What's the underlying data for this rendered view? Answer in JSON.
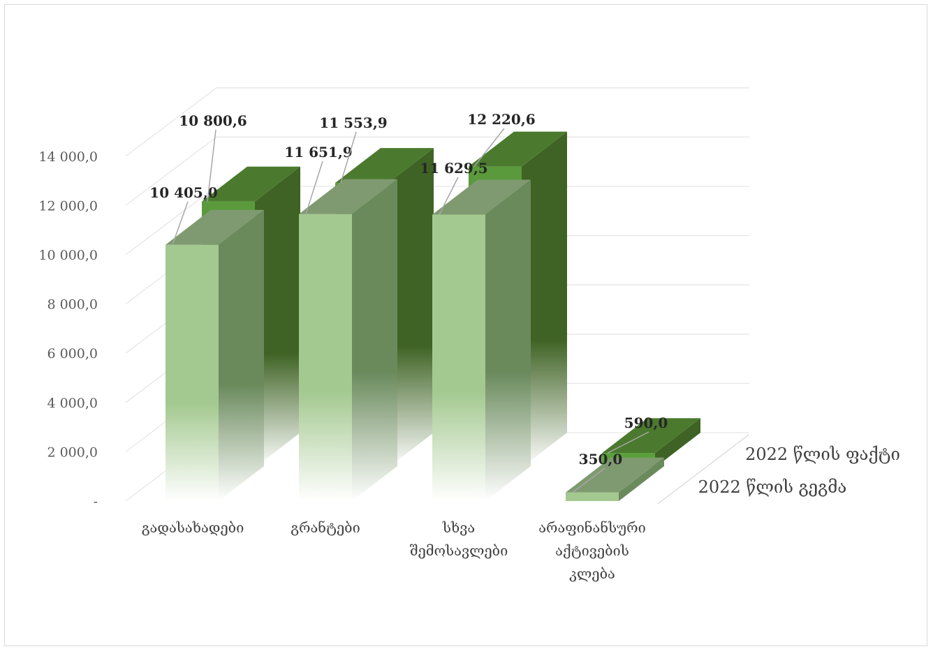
{
  "chart_data": {
    "type": "bar",
    "title": "",
    "xlabel": "",
    "ylabel": "",
    "ylim": [
      0,
      14000
    ],
    "yticks": [
      "-",
      "2 000,0",
      "4 000,0",
      "6 000,0",
      "8 000,0",
      "10 000,0",
      "12 000,0",
      "14 000,0"
    ],
    "categories": [
      [
        "გადასახადები"
      ],
      [
        "გრანტები"
      ],
      [
        "სხვა",
        "შემოსავლები"
      ],
      [
        "არაფინანსური",
        "აქტივების",
        "კლება"
      ]
    ],
    "series": [
      {
        "name": "2022 წლის გეგმა",
        "values": [
          10405.0,
          11651.9,
          11629.5,
          350.0
        ],
        "labels": [
          "10 405,0",
          "11 651,9",
          "11 629,5",
          "350,0"
        ],
        "color": "#a4c990"
      },
      {
        "name": "2022 წლის ფაქტი",
        "values": [
          10800.6,
          11553.9,
          12220.6,
          590.0
        ],
        "labels": [
          "10 800,6",
          "11 553,9",
          "12 220,6",
          "590,0"
        ],
        "color": "#4b7a2e"
      }
    ],
    "grid": true,
    "legend": "none"
  }
}
